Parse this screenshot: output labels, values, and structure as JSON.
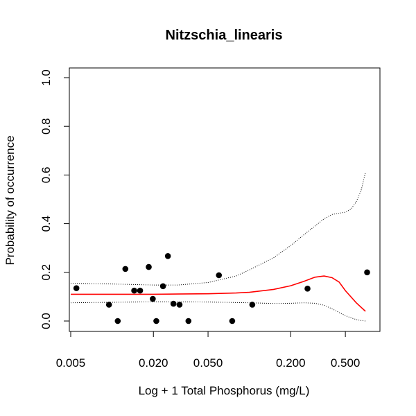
{
  "chart_data": {
    "type": "scatter",
    "title": "Nitzschia_linearis",
    "xlabel": "Log + 1 Total Phosphorus (mg/L)",
    "ylabel": "Probability of occurrence",
    "x_scale": "log",
    "xlim": [
      0.005,
      0.75
    ],
    "ylim": [
      0,
      1
    ],
    "x_ticks": [
      0.005,
      0.02,
      0.05,
      0.2,
      0.5
    ],
    "x_tick_labels": [
      "0.005",
      "0.020",
      "0.050",
      "0.200",
      "0.500"
    ],
    "y_ticks": [
      0,
      0.2,
      0.4,
      0.6,
      0.8,
      1.0
    ],
    "y_tick_labels": [
      "0.0",
      "0.2",
      "0.4",
      "0.6",
      "0.8",
      "1.0"
    ],
    "grid": false,
    "legend": "none",
    "colors": {
      "points": "#000000",
      "fit": "#ff0000",
      "ci": "#000000"
    },
    "points": [
      {
        "x": 0.0055,
        "y": 0.135
      },
      {
        "x": 0.0095,
        "y": 0.067
      },
      {
        "x": 0.011,
        "y": 0.0
      },
      {
        "x": 0.0125,
        "y": 0.214
      },
      {
        "x": 0.0145,
        "y": 0.125
      },
      {
        "x": 0.016,
        "y": 0.125
      },
      {
        "x": 0.0185,
        "y": 0.222
      },
      {
        "x": 0.0198,
        "y": 0.091
      },
      {
        "x": 0.021,
        "y": 0.0
      },
      {
        "x": 0.0235,
        "y": 0.143
      },
      {
        "x": 0.0255,
        "y": 0.267
      },
      {
        "x": 0.028,
        "y": 0.071
      },
      {
        "x": 0.031,
        "y": 0.067
      },
      {
        "x": 0.036,
        "y": 0.0
      },
      {
        "x": 0.06,
        "y": 0.188
      },
      {
        "x": 0.075,
        "y": 0.0
      },
      {
        "x": 0.105,
        "y": 0.067
      },
      {
        "x": 0.265,
        "y": 0.133
      },
      {
        "x": 0.72,
        "y": 0.2
      }
    ],
    "series": [
      {
        "role": "fit",
        "x": [
          0.005,
          0.01,
          0.02,
          0.05,
          0.08,
          0.1,
          0.15,
          0.2,
          0.25,
          0.3,
          0.35,
          0.4,
          0.45,
          0.5,
          0.6,
          0.7
        ],
        "y": [
          0.11,
          0.11,
          0.11,
          0.112,
          0.115,
          0.118,
          0.13,
          0.145,
          0.163,
          0.18,
          0.185,
          0.178,
          0.16,
          0.125,
          0.075,
          0.04
        ]
      },
      {
        "role": "upper-ci",
        "x": [
          0.005,
          0.01,
          0.02,
          0.03,
          0.05,
          0.08,
          0.1,
          0.15,
          0.2,
          0.25,
          0.3,
          0.35,
          0.4,
          0.45,
          0.5,
          0.55,
          0.6,
          0.65,
          0.7
        ],
        "y": [
          0.155,
          0.152,
          0.148,
          0.148,
          0.158,
          0.185,
          0.21,
          0.26,
          0.31,
          0.355,
          0.39,
          0.42,
          0.438,
          0.443,
          0.447,
          0.46,
          0.49,
          0.535,
          0.61
        ]
      },
      {
        "role": "lower-ci",
        "x": [
          0.005,
          0.01,
          0.02,
          0.05,
          0.1,
          0.15,
          0.2,
          0.25,
          0.3,
          0.35,
          0.4,
          0.45,
          0.5,
          0.55,
          0.6,
          0.65,
          0.7
        ],
        "y": [
          0.075,
          0.077,
          0.079,
          0.078,
          0.075,
          0.072,
          0.073,
          0.075,
          0.073,
          0.065,
          0.05,
          0.035,
          0.022,
          0.013,
          0.006,
          0.002,
          0.0
        ]
      }
    ]
  }
}
